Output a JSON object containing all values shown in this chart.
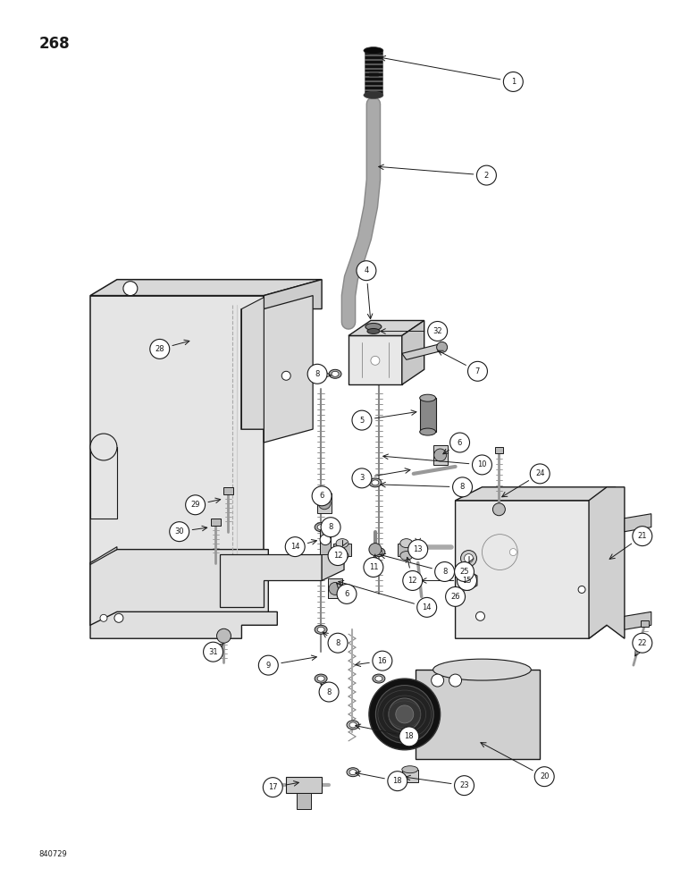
{
  "page_number": "268",
  "catalog_number": "840729",
  "bg_color": "#ffffff",
  "line_color": "#1a1a1a",
  "fig_width": 7.8,
  "fig_height": 10.0,
  "dpi": 100
}
